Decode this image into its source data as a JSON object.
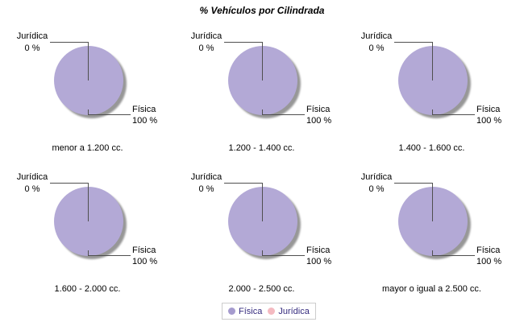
{
  "title": "% Vehículos por Cilindrada",
  "pies": [
    {
      "caption": "menor a 1.200 cc.",
      "top_label": {
        "name": "Jurídica",
        "value": "0 %"
      },
      "bottom_label": {
        "name": "Física",
        "value": "100 %"
      }
    },
    {
      "caption": "1.200 - 1.400 cc.",
      "top_label": {
        "name": "Jurídica",
        "value": "0 %"
      },
      "bottom_label": {
        "name": "Física",
        "value": "100 %"
      }
    },
    {
      "caption": "1.400 - 1.600 cc.",
      "top_label": {
        "name": "Jurídica",
        "value": "0 %"
      },
      "bottom_label": {
        "name": "Física",
        "value": "100 %"
      }
    },
    {
      "caption": "1.600 - 2.000 cc.",
      "top_label": {
        "name": "Jurídica",
        "value": "0 %"
      },
      "bottom_label": {
        "name": "Física",
        "value": "100 %"
      }
    },
    {
      "caption": "2.000 - 2.500 cc.",
      "top_label": {
        "name": "Jurídica",
        "value": "0 %"
      },
      "bottom_label": {
        "name": "Física",
        "value": "100 %"
      }
    },
    {
      "caption": "mayor o igual a 2.500 cc.",
      "top_label": {
        "name": "Jurídica",
        "value": "0 %"
      },
      "bottom_label": {
        "name": "Física",
        "value": "100 %"
      }
    }
  ],
  "legend": {
    "items": [
      {
        "label": "Física",
        "color": "#a59bce"
      },
      {
        "label": "Jurídica",
        "color": "#f4bac1"
      }
    ]
  },
  "colors": {
    "pie_fill": "#b3a9d6",
    "pie_shadow": "#979797",
    "leader_line": "#4f4f4f",
    "legend_text": "#352b7e",
    "legend_border": "#cccccc",
    "label_text": "#000000"
  },
  "chart_data": [
    {
      "type": "pie",
      "title": "menor a 1.200 cc.",
      "labels": [
        "Física",
        "Jurídica"
      ],
      "values": [
        100,
        0
      ],
      "colors": [
        "#b3a9d6",
        "#f4bac1"
      ],
      "legend_position": "bottom"
    },
    {
      "type": "pie",
      "title": "1.200 - 1.400 cc.",
      "labels": [
        "Física",
        "Jurídica"
      ],
      "values": [
        100,
        0
      ],
      "colors": [
        "#b3a9d6",
        "#f4bac1"
      ],
      "legend_position": "bottom"
    },
    {
      "type": "pie",
      "title": "1.400 - 1.600 cc.",
      "labels": [
        "Física",
        "Jurídica"
      ],
      "values": [
        100,
        0
      ],
      "colors": [
        "#b3a9d6",
        "#f4bac1"
      ],
      "legend_position": "bottom"
    },
    {
      "type": "pie",
      "title": "1.600 - 2.000 cc.",
      "labels": [
        "Física",
        "Jurídica"
      ],
      "values": [
        100,
        0
      ],
      "colors": [
        "#b3a9d6",
        "#f4bac1"
      ],
      "legend_position": "bottom"
    },
    {
      "type": "pie",
      "title": "2.000 - 2.500 cc.",
      "labels": [
        "Física",
        "Jurídica"
      ],
      "values": [
        100,
        0
      ],
      "colors": [
        "#b3a9d6",
        "#f4bac1"
      ],
      "legend_position": "bottom"
    },
    {
      "type": "pie",
      "title": "mayor o igual a 2.500 cc.",
      "labels": [
        "Física",
        "Jurídica"
      ],
      "values": [
        100,
        0
      ],
      "colors": [
        "#b3a9d6",
        "#f4bac1"
      ],
      "legend_position": "bottom"
    }
  ]
}
